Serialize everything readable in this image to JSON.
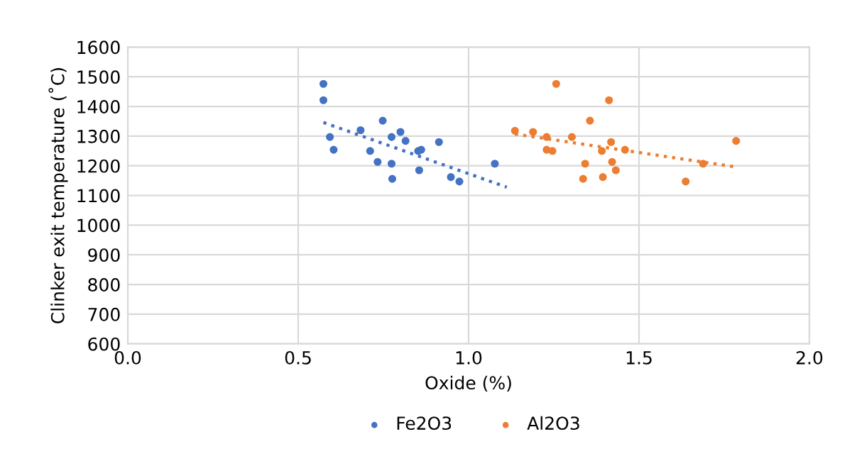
{
  "chart_data": {
    "type": "scatter",
    "xlabel": "Oxide (%)",
    "ylabel": "Clinker exit temperature (˚C)",
    "xlim": [
      0.0,
      2.0
    ],
    "xticks": [
      {
        "value": 0,
        "label": "0.0"
      },
      {
        "value": 0.5,
        "label": "0.5"
      },
      {
        "value": 1.0,
        "label": "1.0"
      },
      {
        "value": 1.5,
        "label": "1.5"
      },
      {
        "value": 2.0,
        "label": "2.0"
      }
    ],
    "ylim": [
      600,
      1600
    ],
    "yticks": [
      600,
      700,
      800,
      900,
      1000,
      1100,
      1200,
      1300,
      1400,
      1500,
      1600
    ],
    "grid": true,
    "legend": "bottom",
    "marker": "circle",
    "series": [
      {
        "name": "Fe2O3",
        "color": "#4472c4",
        "x": [
          0.574,
          0.574,
          0.593,
          0.604,
          0.683,
          0.711,
          0.733,
          0.748,
          0.774,
          0.774,
          0.776,
          0.8,
          0.815,
          0.852,
          0.861,
          0.855,
          0.913,
          0.948,
          0.973,
          1.077
        ],
        "values": [
          1476,
          1421,
          1297,
          1254,
          1320,
          1250,
          1213,
          1352,
          1297,
          1207,
          1156,
          1314,
          1284,
          1250,
          1254,
          1185,
          1280,
          1162,
          1147,
          1207
        ]
      },
      {
        "name": "Al2O3",
        "color": "#ed7d31",
        "x": [
          1.136,
          1.189,
          1.229,
          1.229,
          1.246,
          1.257,
          1.303,
          1.336,
          1.342,
          1.356,
          1.391,
          1.394,
          1.412,
          1.418,
          1.421,
          1.432,
          1.459,
          1.637,
          1.688,
          1.785
        ],
        "values": [
          1318,
          1314,
          1297,
          1254,
          1250,
          1476,
          1297,
          1156,
          1207,
          1352,
          1250,
          1162,
          1421,
          1280,
          1213,
          1185,
          1254,
          1147,
          1207,
          1284
        ]
      },
      {
        "type": "line",
        "color": "#4472c4",
        "line_style": "dotted",
        "marker": "none",
        "x": [
          0.574,
          1.112
        ],
        "values": [
          1346,
          1128
        ]
      },
      {
        "type": "line",
        "color": "#ed7d31",
        "line_style": "dotted",
        "marker": "none",
        "x": [
          1.136,
          1.785
        ],
        "values": [
          1307,
          1196
        ]
      }
    ]
  }
}
